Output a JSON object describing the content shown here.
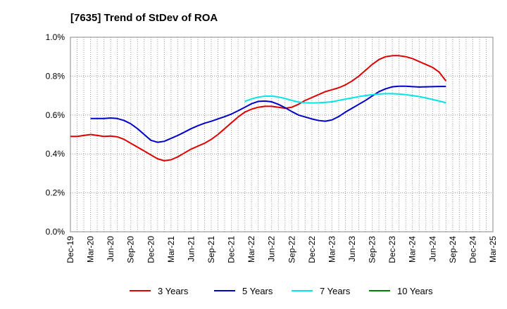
{
  "chart_data": {
    "type": "line",
    "title": "[7635]  Trend of StDev of ROA",
    "xlabel": "",
    "ylabel": "",
    "ylim": [
      0,
      1.0
    ],
    "y_ticks": [
      "0.0%",
      "0.2%",
      "0.4%",
      "0.6%",
      "0.8%",
      "1.0%"
    ],
    "y_tick_values": [
      0,
      0.2,
      0.4,
      0.6,
      0.8,
      1.0
    ],
    "x_ticks": [
      "Dec-19",
      "Mar-20",
      "Jun-20",
      "Sep-20",
      "Dec-20",
      "Mar-21",
      "Jun-21",
      "Sep-21",
      "Dec-21",
      "Mar-22",
      "Jun-22",
      "Sep-22",
      "Dec-22",
      "Mar-23",
      "Jun-23",
      "Sep-23",
      "Dec-23",
      "Mar-24",
      "Jun-24",
      "Sep-24",
      "Dec-24",
      "Mar-25"
    ],
    "grid": true,
    "legend_position": "bottom",
    "series": [
      {
        "name": "3 Years",
        "color": "#dd0000",
        "values": [
          0.49,
          0.49,
          0.495,
          0.5,
          0.495,
          0.49,
          0.492,
          0.488,
          0.475,
          0.455,
          0.435,
          0.415,
          0.395,
          0.375,
          0.365,
          0.37,
          0.385,
          0.405,
          0.425,
          0.44,
          0.455,
          0.475,
          0.5,
          0.53,
          0.56,
          0.59,
          0.615,
          0.63,
          0.64,
          0.645,
          0.645,
          0.64,
          0.635,
          0.64,
          0.655,
          0.675,
          0.69,
          0.705,
          0.72,
          0.73,
          0.74,
          0.755,
          0.775,
          0.8,
          0.83,
          0.86,
          0.885,
          0.9,
          0.905,
          0.905,
          0.9,
          0.89,
          0.875,
          0.86,
          0.845,
          0.82,
          0.775
        ]
      },
      {
        "name": "5 Years",
        "color": "#0000cc",
        "values": [
          null,
          null,
          null,
          0.582,
          0.582,
          0.582,
          0.585,
          0.582,
          0.572,
          0.555,
          0.53,
          0.5,
          0.47,
          0.46,
          0.465,
          0.48,
          0.495,
          0.512,
          0.53,
          0.545,
          0.558,
          0.568,
          0.58,
          0.592,
          0.605,
          0.622,
          0.64,
          0.658,
          0.67,
          0.672,
          0.668,
          0.655,
          0.638,
          0.618,
          0.6,
          0.59,
          0.58,
          0.572,
          0.568,
          0.575,
          0.592,
          0.615,
          0.635,
          0.655,
          0.675,
          0.698,
          0.72,
          0.735,
          0.745,
          0.748,
          0.748,
          0.746,
          0.744,
          0.745,
          0.746,
          0.747,
          0.747
        ]
      },
      {
        "name": "7 Years",
        "color": "#00e5e5",
        "values": [
          null,
          null,
          null,
          null,
          null,
          null,
          null,
          null,
          null,
          null,
          null,
          null,
          null,
          null,
          null,
          null,
          null,
          null,
          null,
          null,
          null,
          null,
          null,
          null,
          null,
          null,
          0.67,
          0.683,
          0.692,
          0.697,
          0.697,
          0.693,
          0.685,
          0.675,
          0.667,
          0.663,
          0.662,
          0.663,
          0.665,
          0.668,
          0.675,
          0.682,
          0.688,
          0.695,
          0.7,
          0.705,
          0.708,
          0.71,
          0.71,
          0.708,
          0.705,
          0.7,
          0.695,
          0.688,
          0.68,
          0.672,
          0.663
        ]
      },
      {
        "name": "10 Years",
        "color": "#008000",
        "values": []
      }
    ]
  }
}
